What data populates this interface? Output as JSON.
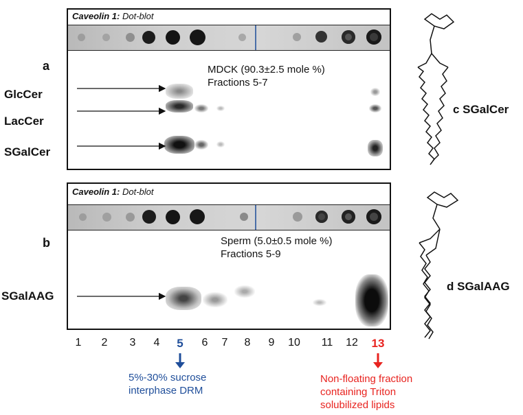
{
  "panel_a": {
    "header_bold": "Caveolin 1:",
    "header_italic": "Dot-blot",
    "letter": "a",
    "note_line1": "MDCK (90.3±2.5 mole %)",
    "note_line2": "Fractions 5-7",
    "lipids": [
      "GlcCer",
      "LacCer",
      "SGalCer"
    ],
    "structure_label": "c SGalCer"
  },
  "panel_b": {
    "header_bold": "Caveolin 1:",
    "header_italic": "Dot-blot",
    "letter": "b",
    "note_line1": "Sperm (5.0±0.5 mole %)",
    "note_line2": "Fractions 5-9",
    "lipids": [
      "SGalAAG"
    ],
    "structure_label": "d SGalAAG"
  },
  "fractions": [
    "1",
    "2",
    "3",
    "4",
    "5",
    "6",
    "7",
    "8",
    "9",
    "10",
    "11",
    "12",
    "13"
  ],
  "highlight": {
    "blue_fraction": "5",
    "blue_color": "#1f4e9a",
    "blue_note_line1": "5%-30% sucrose",
    "blue_note_line2": "interphase DRM",
    "red_fraction": "13",
    "red_color": "#e8231f",
    "red_note_line1": "Non-floating fraction",
    "red_note_line2": "containing Triton",
    "red_note_line3": "solubilized lipids"
  }
}
